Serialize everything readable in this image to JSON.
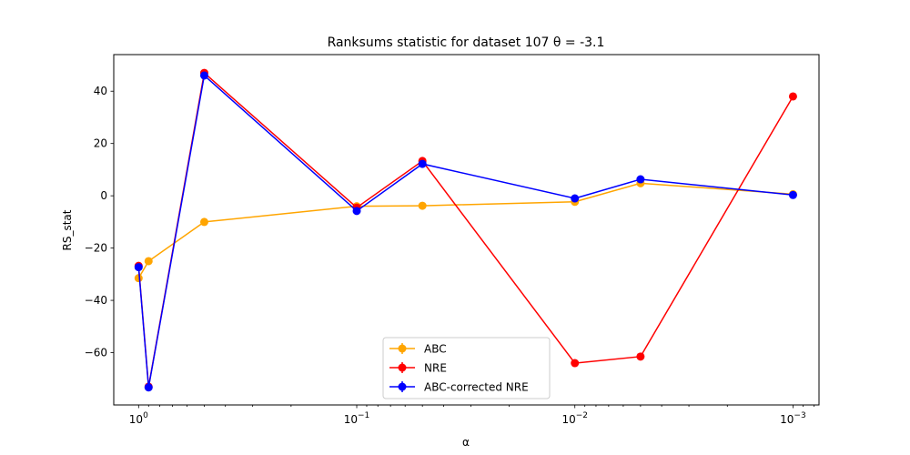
{
  "chart_data": {
    "type": "line",
    "title": "Ranksums statistic for dataset 107 θ =  -3.1",
    "xlabel": "α",
    "ylabel": "RS_stat",
    "xscale": "log-reversed",
    "xlim": [
      1.3,
      0.00076
    ],
    "ylim": [
      -80,
      54
    ],
    "x_ticks": [
      {
        "value": 1,
        "base": "10",
        "exp": "0"
      },
      {
        "value": 0.1,
        "base": "10",
        "exp": "−1"
      },
      {
        "value": 0.01,
        "base": "10",
        "exp": "−2"
      },
      {
        "value": 0.001,
        "base": "10",
        "exp": "−3"
      }
    ],
    "y_ticks": [
      {
        "value": 40,
        "label": "40"
      },
      {
        "value": 20,
        "label": "20"
      },
      {
        "value": 0,
        "label": "0"
      },
      {
        "value": -20,
        "label": "−20"
      },
      {
        "value": -40,
        "label": "−40"
      },
      {
        "value": -60,
        "label": "−60"
      }
    ],
    "x": [
      1,
      0.9,
      0.5,
      0.1,
      0.05,
      0.01,
      0.005,
      0.001
    ],
    "series": [
      {
        "name": "ABC",
        "color": "#ffa500",
        "values": [
          -31.5,
          -25,
          -10,
          -4,
          -3.8,
          -2.3,
          4.8,
          0.6
        ]
      },
      {
        "name": "NRE",
        "color": "#ff0000",
        "values": [
          -26.8,
          -73,
          47,
          -4.5,
          13.3,
          -64,
          -61.5,
          38
        ]
      },
      {
        "name": "ABC-corrected NRE",
        "color": "#0000ff",
        "values": [
          -27.3,
          -73.3,
          46,
          -5.8,
          12.2,
          -1,
          6.3,
          0.3
        ]
      }
    ],
    "legend_position": "lower-center",
    "grid": false
  }
}
